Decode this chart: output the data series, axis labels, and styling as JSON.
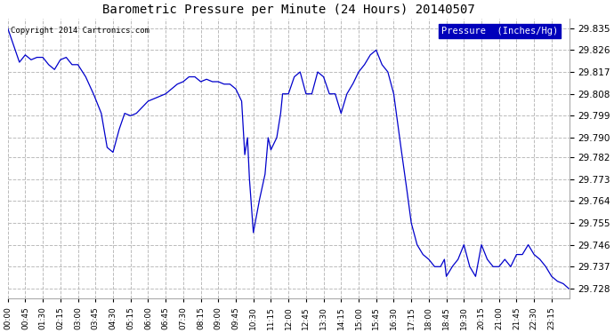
{
  "title": "Barometric Pressure per Minute (24 Hours) 20140507",
  "copyright": "Copyright 2014 Cartronics.com",
  "legend_label": "Pressure  (Inches/Hg)",
  "line_color": "#0000cc",
  "background_color": "#ffffff",
  "plot_bg_color": "#ffffff",
  "legend_bg": "#0000bb",
  "legend_text_color": "#ffffff",
  "yticks": [
    29.728,
    29.737,
    29.746,
    29.755,
    29.764,
    29.773,
    29.782,
    29.79,
    29.799,
    29.808,
    29.817,
    29.826,
    29.835
  ],
  "ylim": [
    29.724,
    29.839
  ],
  "xtick_labels": [
    "00:00",
    "00:45",
    "01:30",
    "02:15",
    "03:00",
    "03:45",
    "04:30",
    "05:15",
    "06:00",
    "06:45",
    "07:30",
    "08:15",
    "09:00",
    "09:45",
    "10:30",
    "11:15",
    "12:00",
    "12:45",
    "13:30",
    "14:15",
    "15:00",
    "15:45",
    "16:30",
    "17:15",
    "18:00",
    "18:45",
    "19:30",
    "20:15",
    "21:00",
    "21:45",
    "22:30",
    "23:15"
  ],
  "grid_color": "#bbbbbb",
  "grid_style": "--"
}
